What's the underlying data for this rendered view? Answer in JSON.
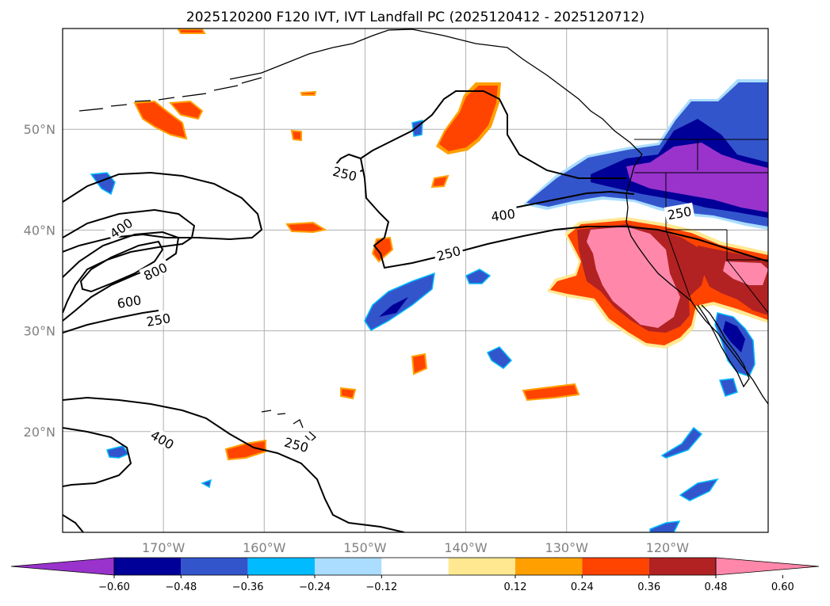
{
  "title": "2025120200 F120 IVT, IVT Landfall PC (2025120412 - 2025120712)",
  "map": {
    "extent": {
      "lon_min": -180,
      "lon_max": -110,
      "lat_min": 10,
      "lat_max": 60
    },
    "gridlines": true,
    "lon_ticks": [
      {
        "lon": -170,
        "label": "170°W"
      },
      {
        "lon": -160,
        "label": "160°W"
      },
      {
        "lon": -150,
        "label": "150°W"
      },
      {
        "lon": -140,
        "label": "140°W"
      },
      {
        "lon": -130,
        "label": "130°W"
      },
      {
        "lon": -120,
        "label": "120°W"
      }
    ],
    "lat_ticks": [
      {
        "lat": 20,
        "label": "20°N"
      },
      {
        "lat": 30,
        "label": "30°N"
      },
      {
        "lat": 40,
        "label": "40°N"
      },
      {
        "lat": 50,
        "label": "50°N"
      }
    ],
    "contour_labels": [
      {
        "text": "400",
        "lon": -174.2,
        "lat": 40.2,
        "rot": -35
      },
      {
        "text": "800",
        "lon": -170.8,
        "lat": 35.9,
        "rot": -25
      },
      {
        "text": "600",
        "lon": -173.4,
        "lat": 32.9,
        "rot": -10
      },
      {
        "text": "250",
        "lon": -170.5,
        "lat": 31.1,
        "rot": -10
      },
      {
        "text": "250",
        "lon": -152,
        "lat": 45.6,
        "rot": 14
      },
      {
        "text": "400",
        "lon": -136.3,
        "lat": 41.5,
        "rot": -8
      },
      {
        "text": "250",
        "lon": -141.7,
        "lat": 37.7,
        "rot": -15
      },
      {
        "text": "250",
        "lon": -118.8,
        "lat": 41.7,
        "rot": -10
      },
      {
        "text": "400",
        "lon": -170.1,
        "lat": 19.2,
        "rot": 30
      },
      {
        "text": "250",
        "lon": -156.8,
        "lat": 18.7,
        "rot": 15
      }
    ]
  },
  "colorbar": {
    "colors": [
      "#9933cc",
      "#000099",
      "#3355cc",
      "#00bbff",
      "#aaddff",
      "#ffffff",
      "#ffe890",
      "#ffa000",
      "#ff4400",
      "#b22222",
      "#ff88aa"
    ],
    "tick_labels": [
      "−0.60",
      "−0.48",
      "−0.36",
      "−0.24",
      "−0.12",
      "0.12",
      "0.24",
      "0.36",
      "0.48",
      "0.60"
    ]
  }
}
